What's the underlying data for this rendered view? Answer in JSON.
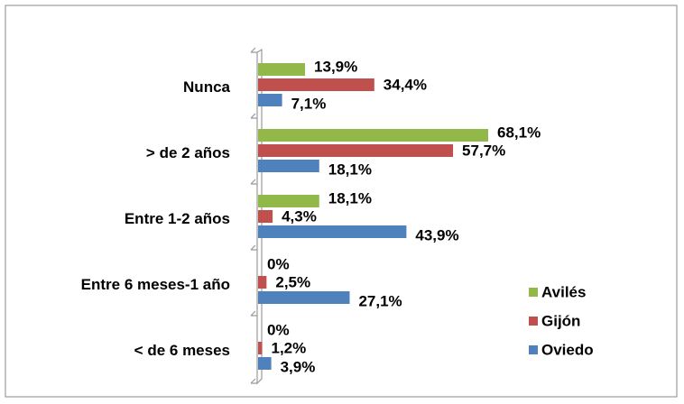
{
  "chart_data": {
    "type": "bar",
    "orientation": "horizontal",
    "categories": [
      "Nunca",
      "> de 2 años",
      "Entre 1-2 años",
      "Entre 6 meses-1 año",
      "< de 6 meses"
    ],
    "series": [
      {
        "name": "Avilés",
        "color": "#92b84a",
        "values": [
          13.9,
          68.1,
          18.1,
          0,
          0
        ],
        "value_labels": [
          "13,9%",
          "68,1%",
          "18,1%",
          "0%",
          "0%"
        ]
      },
      {
        "name": "Gijón",
        "color": "#c0504d",
        "values": [
          34.4,
          57.7,
          4.3,
          2.5,
          1.2
        ],
        "value_labels": [
          "34,4%",
          "57,7%",
          "4,3%",
          "2,5%",
          "1,2%"
        ]
      },
      {
        "name": "Oviedo",
        "color": "#4f81bd",
        "values": [
          7.1,
          18.1,
          43.9,
          27.1,
          3.9
        ],
        "value_labels": [
          "7,1%",
          "18,1%",
          "43,9%",
          "27,1%",
          "3,9%"
        ]
      }
    ],
    "legend": "right"
  }
}
